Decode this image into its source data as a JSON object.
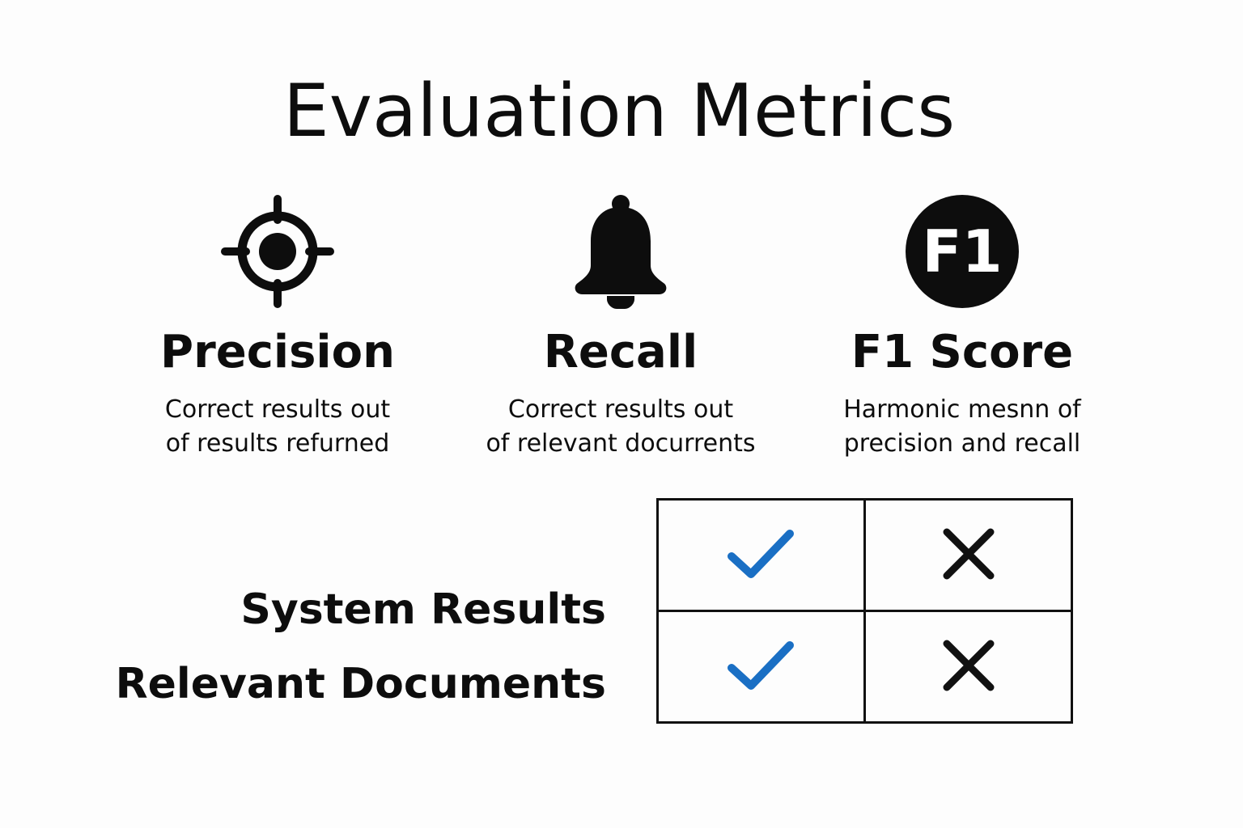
{
  "title": "Evaluation Metrics",
  "metrics": [
    {
      "name": "Precision",
      "icon": "crosshair-target-icon",
      "desc_line1": "Correct results out",
      "desc_line2": "of results refurned"
    },
    {
      "name": "Recall",
      "icon": "bell-icon",
      "desc_line1": "Correct results out",
      "desc_line2": "of relevant docurrents"
    },
    {
      "name": "F1 Score",
      "icon": "f1-badge-icon",
      "icon_text": "F1",
      "desc_line1": "Harmonic mesnn of",
      "desc_line2": "precision and recall"
    }
  ],
  "legend": {
    "row1_label": "System Results",
    "row2_label": "Relevant Documents"
  },
  "grid": {
    "rows": [
      [
        "check",
        "cross"
      ],
      [
        "check",
        "cross"
      ]
    ]
  },
  "colors": {
    "text": "#0d0d0d",
    "check": "#1a6fc4",
    "cross": "#111111",
    "background": "#fdfdfd"
  }
}
